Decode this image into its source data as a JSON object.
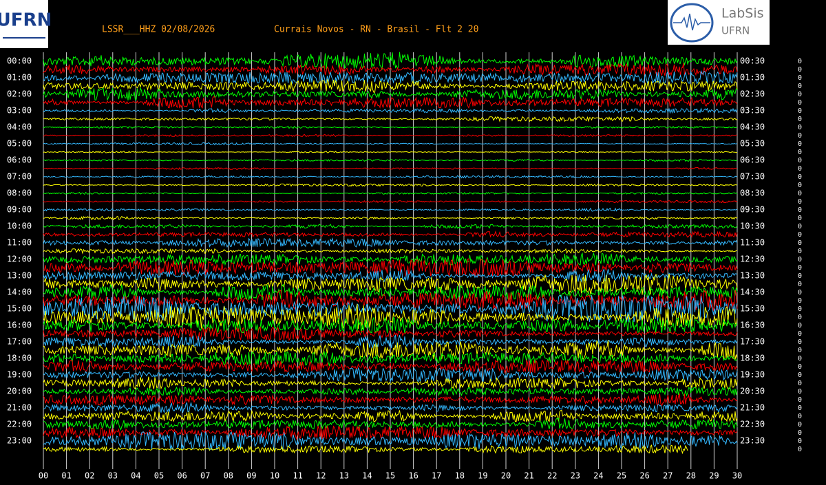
{
  "header": {
    "station": "LSSR___HHZ 02/08/2026",
    "location": "Currais Novos - RN - Brasil - Flt 2 20",
    "logo_left": "UFRN",
    "logo_right_title": "LabSis",
    "logo_right_sub": "UFRN"
  },
  "chart_data": {
    "type": "helicorder",
    "xlim": [
      0,
      30
    ],
    "xticks": [
      {
        "value": 0,
        "label": "00"
      },
      {
        "value": 1,
        "label": "01"
      },
      {
        "value": 2,
        "label": "02"
      },
      {
        "value": 3,
        "label": "03"
      },
      {
        "value": 4,
        "label": "04"
      },
      {
        "value": 5,
        "label": "05"
      },
      {
        "value": 6,
        "label": "06"
      },
      {
        "value": 7,
        "label": "07"
      },
      {
        "value": 8,
        "label": "08"
      },
      {
        "value": 9,
        "label": "09"
      },
      10,
      11,
      12,
      13,
      14,
      15,
      16,
      17,
      18,
      19,
      20,
      21,
      22,
      23,
      24,
      25,
      26,
      27,
      28,
      29,
      30
    ],
    "left_labels": [
      "00:00",
      "01:00",
      "02:00",
      "03:00",
      "04:00",
      "05:00",
      "06:00",
      "07:00",
      "08:00",
      "09:00",
      "10:00",
      "11:00",
      "12:00",
      "13:00",
      "14:00",
      "15:00",
      "16:00",
      "17:00",
      "18:00",
      "19:00",
      "20:00",
      "21:00",
      "22:00",
      "23:00"
    ],
    "right_labels": [
      "00:30",
      "01:30",
      "02:30",
      "03:30",
      "04:30",
      "05:30",
      "06:30",
      "07:30",
      "08:30",
      "09:30",
      "10:30",
      "11:30",
      "12:30",
      "13:30",
      "14:30",
      "15:30",
      "16:30",
      "17:30",
      "18:30",
      "19:30",
      "20:30",
      "21:30",
      "22:30",
      "23:30"
    ],
    "trace_colors": [
      "#00ff00",
      "#ff0000",
      "#33b8ff",
      "#ffff00"
    ],
    "amplitudes": [
      4,
      3,
      3,
      3,
      3,
      3,
      1,
      1,
      0.5,
      0.5,
      0.5,
      0.5,
      0.5,
      0.5,
      0.5,
      0.5,
      0.5,
      0.5,
      1,
      1,
      1,
      1.5,
      2,
      1,
      3,
      4,
      4,
      6,
      4,
      5,
      6,
      6,
      4,
      3,
      4,
      5,
      4,
      3,
      3,
      3,
      2,
      4,
      3,
      3,
      3,
      3,
      4,
      2
    ],
    "last_trace_end": 27.9,
    "row_counts": [
      0,
      0,
      0,
      0,
      0,
      0,
      0,
      0,
      0,
      0,
      0,
      0,
      0,
      0,
      0,
      0,
      0,
      0,
      0,
      0,
      0,
      0,
      0,
      0,
      0,
      0,
      0,
      0,
      0,
      0,
      0,
      0,
      0,
      0,
      0,
      0,
      0,
      0,
      0,
      0,
      0,
      0,
      0,
      0,
      0,
      0,
      0,
      0
    ]
  }
}
